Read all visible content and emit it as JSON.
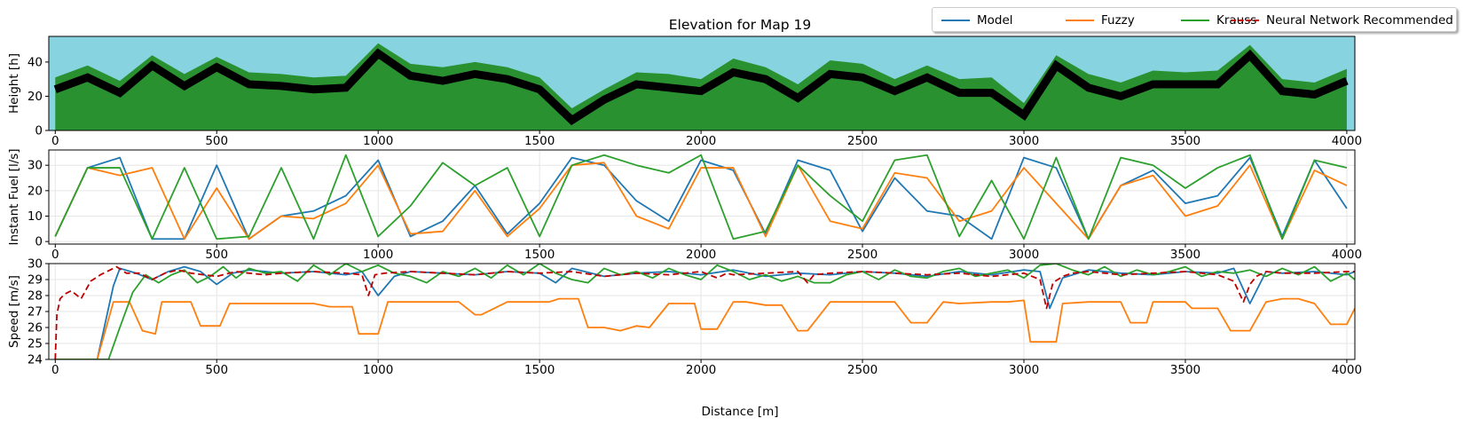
{
  "chart_data": [
    {
      "type": "area",
      "title": "Elevation for Map 19",
      "xlabel": "",
      "ylabel": "Height [h]",
      "xlim": [
        -20,
        4025
      ],
      "ylim": [
        0,
        55
      ],
      "xticks": [
        0,
        500,
        1000,
        1500,
        2000,
        2500,
        3000,
        3500,
        4000
      ],
      "yticks": [
        0,
        20,
        40
      ],
      "sky_color": "#87d4e0",
      "ground_color": "#2a9130",
      "road_color": "#000000",
      "grid": false,
      "x": [
        0,
        100,
        200,
        300,
        400,
        500,
        600,
        700,
        800,
        900,
        1000,
        1100,
        1200,
        1300,
        1400,
        1500,
        1600,
        1700,
        1800,
        1900,
        2000,
        2100,
        2200,
        2300,
        2400,
        2500,
        2600,
        2700,
        2800,
        2900,
        3000,
        3100,
        3200,
        3300,
        3400,
        3500,
        3600,
        3700,
        3800,
        3900,
        4000
      ],
      "road": [
        24,
        31,
        22,
        38,
        26,
        37,
        27,
        26,
        24,
        25,
        45,
        32,
        29,
        33,
        30,
        24,
        6,
        18,
        27,
        25,
        23,
        34,
        30,
        19,
        33,
        31,
        23,
        31,
        22,
        22,
        9,
        38,
        25,
        20,
        27,
        27,
        27,
        44,
        23,
        21,
        29
      ],
      "terrain_top": [
        31,
        38,
        29,
        44,
        33,
        43,
        34,
        33,
        31,
        32,
        51,
        39,
        37,
        40,
        37,
        31,
        13,
        24,
        34,
        33,
        30,
        42,
        37,
        27,
        41,
        39,
        30,
        38,
        30,
        31,
        16,
        44,
        33,
        28,
        35,
        34,
        35,
        50,
        30,
        28,
        36
      ]
    },
    {
      "type": "line",
      "ylabel": "Instant Fuel [l/s]",
      "xlim": [
        -20,
        4025
      ],
      "ylim": [
        -1,
        36
      ],
      "xticks": [
        0,
        500,
        1000,
        1500,
        2000,
        2500,
        3000,
        3500,
        4000
      ],
      "yticks": [
        0,
        10,
        20,
        30
      ],
      "grid": true,
      "x": [
        0,
        100,
        200,
        300,
        400,
        500,
        600,
        700,
        800,
        900,
        1000,
        1100,
        1200,
        1300,
        1400,
        1500,
        1600,
        1700,
        1800,
        1900,
        2000,
        2100,
        2200,
        2300,
        2400,
        2500,
        2600,
        2700,
        2800,
        2900,
        3000,
        3100,
        3200,
        3300,
        3400,
        3500,
        3600,
        3700,
        3800,
        3900,
        4000
      ],
      "series": [
        {
          "name": "Model",
          "color": "#1f77b4",
          "dash": "",
          "values": [
            2,
            29,
            33,
            1,
            1,
            30,
            1,
            10,
            12,
            18,
            32,
            2,
            8,
            22,
            3,
            15,
            33,
            30,
            16,
            8,
            32,
            28,
            3,
            32,
            28,
            4,
            25,
            12,
            10,
            1,
            33,
            29,
            1,
            22,
            28,
            15,
            18,
            33,
            2,
            32,
            13
          ]
        },
        {
          "name": "Fuzzy",
          "color": "#ff7f0e",
          "dash": "",
          "values": [
            2,
            29,
            26,
            29,
            1,
            21,
            1,
            10,
            9,
            15,
            30,
            3,
            4,
            20,
            2,
            13,
            30,
            31,
            10,
            5,
            29,
            29,
            2,
            30,
            8,
            5,
            27,
            25,
            8,
            12,
            29,
            15,
            1,
            22,
            26,
            10,
            14,
            30,
            1,
            28,
            22
          ]
        },
        {
          "name": "Krauss",
          "color": "#2ca02c",
          "dash": "",
          "values": [
            2,
            29,
            29,
            1,
            29,
            1,
            2,
            29,
            1,
            34,
            2,
            14,
            31,
            22,
            29,
            2,
            30,
            34,
            30,
            27,
            34,
            1,
            4,
            30,
            18,
            8,
            32,
            34,
            2,
            24,
            1,
            33,
            1,
            33,
            30,
            21,
            29,
            34,
            1,
            32,
            29
          ]
        }
      ]
    },
    {
      "type": "line",
      "xlabel": "Distance [m]",
      "ylabel": "Speed [m/s]",
      "xlim": [
        -20,
        4025
      ],
      "ylim": [
        24,
        30
      ],
      "xticks": [
        0,
        500,
        1000,
        1500,
        2000,
        2500,
        3000,
        3500,
        4000
      ],
      "yticks": [
        24,
        25,
        26,
        27,
        28,
        29,
        30
      ],
      "grid": true,
      "series": [
        {
          "name": "Model",
          "color": "#1f77b4",
          "dash": "",
          "x": [
            0,
            130,
            180,
            200,
            250,
            300,
            350,
            400,
            450,
            500,
            550,
            600,
            700,
            800,
            900,
            950,
            1000,
            1050,
            1100,
            1200,
            1300,
            1400,
            1500,
            1550,
            1600,
            1700,
            1800,
            1900,
            2000,
            2100,
            2200,
            2300,
            2400,
            2500,
            2600,
            2700,
            2800,
            2900,
            3000,
            3050,
            3080,
            3120,
            3200,
            3300,
            3400,
            3500,
            3600,
            3650,
            3700,
            3750,
            3800,
            3900,
            4000,
            4025
          ],
          "values": [
            24,
            24,
            28.6,
            29.7,
            29.4,
            29.0,
            29.5,
            29.8,
            29.5,
            28.7,
            29.4,
            29.6,
            29.4,
            29.5,
            29.3,
            29.5,
            28.0,
            29.2,
            29.5,
            29.4,
            29.3,
            29.5,
            29.4,
            28.8,
            29.7,
            29.2,
            29.4,
            29.5,
            29.3,
            29.6,
            29.2,
            29.4,
            29.3,
            29.5,
            29.4,
            29.2,
            29.5,
            29.3,
            29.6,
            29.5,
            27.2,
            29.1,
            29.6,
            29.4,
            29.3,
            29.5,
            29.4,
            29.7,
            27.5,
            29.5,
            29.4,
            29.5,
            29.3,
            29.5
          ]
        },
        {
          "name": "Fuzzy",
          "color": "#ff7f0e",
          "dash": "",
          "x": [
            0,
            130,
            180,
            230,
            270,
            310,
            330,
            420,
            450,
            510,
            540,
            600,
            700,
            800,
            850,
            920,
            940,
            1000,
            1030,
            1100,
            1200,
            1250,
            1300,
            1320,
            1400,
            1500,
            1530,
            1560,
            1620,
            1650,
            1700,
            1750,
            1800,
            1840,
            1900,
            1980,
            2000,
            2050,
            2100,
            2140,
            2200,
            2250,
            2300,
            2330,
            2400,
            2430,
            2500,
            2600,
            2650,
            2700,
            2750,
            2800,
            2900,
            2950,
            3000,
            3020,
            3100,
            3120,
            3200,
            3300,
            3330,
            3380,
            3400,
            3500,
            3520,
            3550,
            3600,
            3640,
            3700,
            3750,
            3800,
            3850,
            3900,
            3950,
            4000,
            4025
          ],
          "values": [
            24,
            24,
            27.6,
            27.6,
            25.8,
            25.6,
            27.6,
            27.6,
            26.1,
            26.1,
            27.5,
            27.5,
            27.5,
            27.5,
            27.3,
            27.3,
            25.6,
            25.6,
            27.6,
            27.6,
            27.6,
            27.6,
            26.8,
            26.8,
            27.6,
            27.6,
            27.6,
            27.8,
            27.8,
            26.0,
            26.0,
            25.8,
            26.1,
            26.0,
            27.5,
            27.5,
            25.9,
            25.9,
            27.6,
            27.6,
            27.4,
            27.4,
            25.8,
            25.8,
            27.6,
            27.6,
            27.6,
            27.6,
            26.3,
            26.3,
            27.6,
            27.5,
            27.6,
            27.6,
            27.7,
            25.1,
            25.1,
            27.5,
            27.6,
            27.6,
            26.3,
            26.3,
            27.6,
            27.6,
            27.2,
            27.2,
            27.2,
            25.8,
            25.8,
            27.6,
            27.8,
            27.8,
            27.5,
            26.2,
            26.2,
            27.2
          ]
        },
        {
          "name": "Krauss",
          "color": "#2ca02c",
          "dash": "",
          "x": [
            0,
            165,
            200,
            240,
            280,
            320,
            360,
            400,
            440,
            480,
            520,
            560,
            600,
            650,
            700,
            750,
            800,
            850,
            900,
            950,
            1000,
            1050,
            1100,
            1150,
            1200,
            1250,
            1300,
            1350,
            1400,
            1450,
            1500,
            1550,
            1600,
            1650,
            1700,
            1750,
            1800,
            1850,
            1900,
            1950,
            2000,
            2050,
            2100,
            2150,
            2200,
            2250,
            2300,
            2350,
            2400,
            2450,
            2500,
            2550,
            2600,
            2650,
            2700,
            2750,
            2800,
            2850,
            2900,
            2950,
            3000,
            3050,
            3100,
            3150,
            3200,
            3250,
            3300,
            3350,
            3400,
            3450,
            3500,
            3550,
            3600,
            3650,
            3700,
            3750,
            3800,
            3850,
            3900,
            3950,
            4000,
            4025
          ],
          "values": [
            24,
            24,
            26.0,
            28.2,
            29.3,
            28.8,
            29.3,
            29.6,
            28.8,
            29.2,
            29.8,
            29.1,
            29.7,
            29.4,
            29.5,
            28.9,
            29.9,
            29.3,
            30.0,
            29.5,
            29.9,
            29.4,
            29.2,
            28.8,
            29.5,
            29.2,
            29.7,
            29.1,
            29.9,
            29.3,
            30.0,
            29.4,
            29.0,
            28.8,
            29.7,
            29.3,
            29.5,
            29.1,
            29.7,
            29.3,
            29.0,
            29.9,
            29.5,
            29.0,
            29.3,
            28.9,
            29.2,
            28.8,
            28.8,
            29.3,
            29.5,
            29.0,
            29.6,
            29.2,
            29.1,
            29.5,
            29.7,
            29.2,
            29.4,
            29.6,
            29.1,
            29.9,
            30.0,
            29.6,
            29.3,
            29.8,
            29.2,
            29.6,
            29.3,
            29.5,
            29.8,
            29.2,
            29.5,
            29.4,
            29.6,
            29.2,
            29.7,
            29.3,
            29.8,
            28.9,
            29.4,
            29.0
          ]
        },
        {
          "name": "Neural Network Recommended",
          "color": "#c00000",
          "dash": "7,4",
          "x": [
            0,
            5,
            15,
            30,
            50,
            80,
            110,
            140,
            170,
            190,
            220,
            260,
            300,
            340,
            380,
            420,
            460,
            500,
            560,
            600,
            650,
            700,
            800,
            900,
            950,
            970,
            990,
            1020,
            1100,
            1200,
            1300,
            1400,
            1500,
            1600,
            1700,
            1800,
            1900,
            2000,
            2050,
            2080,
            2100,
            2200,
            2300,
            2330,
            2350,
            2400,
            2500,
            2600,
            2700,
            2800,
            2900,
            3000,
            3050,
            3070,
            3090,
            3120,
            3150,
            3200,
            3300,
            3400,
            3500,
            3600,
            3650,
            3680,
            3700,
            3720,
            3750,
            3800,
            3900,
            4000,
            4025
          ],
          "values": [
            24,
            26.8,
            27.8,
            28.1,
            28.3,
            27.8,
            28.9,
            29.3,
            29.6,
            29.8,
            29.4,
            29.4,
            29.0,
            29.4,
            29.6,
            29.4,
            29.3,
            29.2,
            29.5,
            29.4,
            29.3,
            29.4,
            29.5,
            29.4,
            29.3,
            28.0,
            29.3,
            29.4,
            29.5,
            29.4,
            29.3,
            29.5,
            29.4,
            29.5,
            29.2,
            29.4,
            29.3,
            29.5,
            29.1,
            29.4,
            29.3,
            29.4,
            29.5,
            28.8,
            29.3,
            29.4,
            29.5,
            29.4,
            29.3,
            29.4,
            29.2,
            29.4,
            29.0,
            27.2,
            28.8,
            29.2,
            29.4,
            29.5,
            29.3,
            29.4,
            29.5,
            29.3,
            28.9,
            27.6,
            28.7,
            29.2,
            29.5,
            29.4,
            29.4,
            29.5,
            29.5
          ]
        }
      ]
    }
  ]
}
